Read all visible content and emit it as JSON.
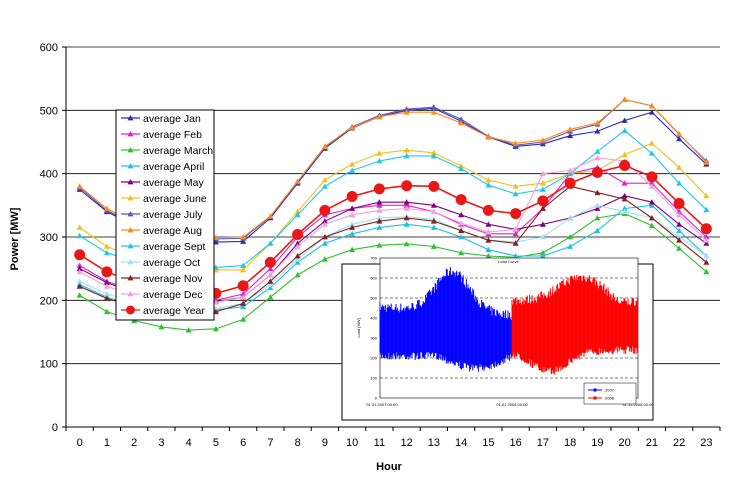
{
  "chart_data": [
    {
      "type": "line",
      "xlabel": "Hour",
      "ylabel": "Power [MW]",
      "ylim": [
        0,
        600
      ],
      "yticks": [
        0,
        100,
        200,
        300,
        400,
        500,
        600
      ],
      "categories": [
        "0",
        "1",
        "2",
        "3",
        "4",
        "5",
        "6",
        "7",
        "8",
        "9",
        "10",
        "11",
        "12",
        "13",
        "14",
        "15",
        "16",
        "17",
        "18",
        "19",
        "20",
        "21",
        "22",
        "23"
      ],
      "grid": "horizontal",
      "legend_position": "left",
      "series": [
        {
          "name": "average Jan",
          "color": "#2b2bb8",
          "marker": "triangle",
          "values": [
            375,
            340,
            318,
            300,
            292,
            292,
            293,
            330,
            385,
            440,
            472,
            490,
            500,
            503,
            483,
            458,
            443,
            447,
            460,
            467,
            484,
            497,
            455,
            415
          ]
        },
        {
          "name": "average Feb",
          "color": "#e020c8",
          "marker": "triangle",
          "values": [
            255,
            230,
            215,
            205,
            200,
            200,
            210,
            250,
            300,
            335,
            345,
            350,
            350,
            340,
            320,
            305,
            305,
            345,
            400,
            410,
            385,
            385,
            340,
            300
          ]
        },
        {
          "name": "average March",
          "color": "#30c030",
          "marker": "triangle",
          "values": [
            208,
            182,
            168,
            158,
            153,
            155,
            170,
            205,
            240,
            265,
            280,
            287,
            289,
            285,
            275,
            270,
            268,
            275,
            300,
            330,
            337,
            318,
            282,
            245
          ]
        },
        {
          "name": "average April",
          "color": "#20c0e0",
          "marker": "triangle",
          "values": [
            225,
            205,
            192,
            185,
            183,
            185,
            190,
            220,
            260,
            290,
            305,
            315,
            320,
            315,
            300,
            280,
            270,
            270,
            285,
            310,
            345,
            350,
            310,
            270
          ]
        },
        {
          "name": "average May",
          "color": "#800080",
          "marker": "triangle",
          "values": [
            250,
            228,
            212,
            202,
            197,
            198,
            205,
            240,
            290,
            325,
            345,
            355,
            355,
            350,
            335,
            320,
            312,
            320,
            330,
            345,
            365,
            355,
            320,
            290
          ]
        },
        {
          "name": "average June",
          "color": "#f0c020",
          "marker": "triangle",
          "values": [
            315,
            285,
            268,
            258,
            250,
            248,
            248,
            290,
            340,
            390,
            415,
            432,
            437,
            433,
            412,
            390,
            380,
            385,
            400,
            405,
            430,
            448,
            410,
            365
          ]
        },
        {
          "name": "average July",
          "color": "#5a5ab4",
          "marker": "triangle",
          "values": [
            378,
            342,
            320,
            305,
            298,
            297,
            298,
            332,
            387,
            442,
            474,
            492,
            502,
            505,
            486,
            459,
            445,
            450,
            467,
            478,
            517,
            507,
            462,
            420
          ]
        },
        {
          "name": "average Aug",
          "color": "#ff8c1a",
          "marker": "triangle",
          "values": [
            380,
            345,
            322,
            307,
            300,
            299,
            300,
            333,
            388,
            443,
            473,
            490,
            497,
            497,
            480,
            458,
            448,
            453,
            470,
            480,
            517,
            507,
            463,
            418
          ]
        },
        {
          "name": "average Sept",
          "color": "#20c8e8",
          "marker": "triangle",
          "values": [
            302,
            275,
            262,
            255,
            253,
            252,
            255,
            290,
            335,
            380,
            405,
            420,
            428,
            428,
            408,
            382,
            368,
            375,
            400,
            435,
            468,
            432,
            385,
            343
          ]
        },
        {
          "name": "average Oct",
          "color": "#a0e0f0",
          "marker": "triangle",
          "values": [
            230,
            210,
            198,
            190,
            185,
            187,
            195,
            225,
            265,
            300,
            320,
            330,
            332,
            328,
            310,
            295,
            292,
            300,
            330,
            350,
            340,
            330,
            300,
            270
          ]
        },
        {
          "name": "average Nov",
          "color": "#802020",
          "marker": "triangle",
          "values": [
            222,
            203,
            190,
            183,
            180,
            182,
            195,
            230,
            270,
            300,
            315,
            325,
            330,
            325,
            310,
            295,
            290,
            345,
            380,
            370,
            360,
            330,
            295,
            260
          ]
        },
        {
          "name": "average Dec",
          "color": "#f0a0e0",
          "marker": "triangle",
          "values": [
            245,
            222,
            208,
            200,
            195,
            197,
            205,
            240,
            285,
            320,
            335,
            342,
            345,
            340,
            322,
            308,
            312,
            400,
            405,
            425,
            420,
            380,
            335,
            295
          ]
        },
        {
          "name": "average Year",
          "color": "#e81818",
          "marker": "circle",
          "values": [
            272,
            245,
            229,
            219,
            213,
            211,
            223,
            260,
            304,
            342,
            364,
            376,
            381,
            380,
            359,
            342,
            337,
            357,
            385,
            402,
            413,
            395,
            353,
            313
          ]
        }
      ]
    },
    {
      "type": "line",
      "xticks": [
        "01.01.2007 00:00",
        "01.01.2008 00:00",
        "31.12.2008 00:00"
      ],
      "ylabel": "Load [MW]",
      "ylim": [
        0,
        700
      ],
      "yticks": [
        0,
        100,
        200,
        300,
        400,
        500,
        600,
        700
      ],
      "annotation": "Load Curve",
      "legend_position": "bottom-right",
      "series": [
        {
          "name": "2007",
          "color": "#0000ff"
        },
        {
          "name": "2008",
          "color": "#ff0000"
        }
      ]
    }
  ]
}
